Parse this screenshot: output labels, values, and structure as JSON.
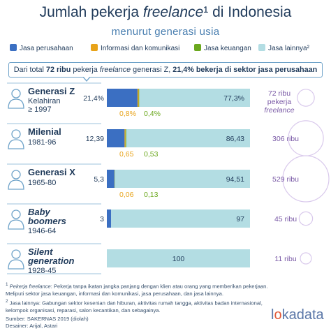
{
  "title": {
    "prefix": "Jumlah pekerja ",
    "italic": "freelance",
    "suffix": "¹ di Indonesia"
  },
  "subtitle": "menurut generasi usia",
  "legend": [
    {
      "label": "Jasa perusahaan",
      "color": "#3b6fc2"
    },
    {
      "label": "Informasi dan komunikasi",
      "color": "#e8a319"
    },
    {
      "label": "Jasa keuangan",
      "color": "#6ba81e"
    },
    {
      "label": "Jasa lainnya²",
      "color": "#b3dde3"
    }
  ],
  "note": {
    "p1": "Dari total ",
    "b1": "72 ribu",
    "p2": " pekerja ",
    "i1": "freelance",
    "p3": " generasi Z, ",
    "b2": "21,4% bekerja di sektor jasa perusahaan"
  },
  "chart_data": {
    "type": "bar",
    "orientation": "horizontal",
    "stacked": true,
    "unit": "%",
    "categories": [
      "Generasi Z",
      "Milenial",
      "Generasi X",
      "Baby boomers",
      "Silent generation"
    ],
    "category_subtitles": [
      "Kelahiran ≥ 1997",
      "1981-96",
      "1965-80",
      "1946-64",
      "1928-45"
    ],
    "series": [
      {
        "name": "Jasa perusahaan",
        "color": "#3b6fc2",
        "values": [
          21.4,
          12.39,
          5.3,
          3,
          0
        ],
        "labels": [
          "21,4%",
          "12,39",
          "5,3",
          "3",
          ""
        ]
      },
      {
        "name": "Informasi dan komunikasi",
        "color": "#e8a319",
        "values": [
          0.8,
          0.65,
          0.06,
          0,
          0
        ],
        "labels": [
          "0,8%",
          "0,65",
          "0,06",
          "",
          ""
        ]
      },
      {
        "name": "Jasa keuangan",
        "color": "#6ba81e",
        "values": [
          0.4,
          0.53,
          0.13,
          0,
          0
        ],
        "labels": [
          "0,4%",
          "0,53",
          "0,13",
          "",
          ""
        ]
      },
      {
        "name": "Jasa lainnya²",
        "color": "#b3dde3",
        "values": [
          77.3,
          86.43,
          94.51,
          97,
          100
        ],
        "labels": [
          "77,3%",
          "86,43",
          "94,51",
          "97",
          "100"
        ]
      }
    ],
    "totals": {
      "values_ribu": [
        72,
        306,
        529,
        45,
        11
      ],
      "labels": [
        "72 ribu pekerja freelance",
        "306 ribu",
        "529 ribu",
        "45 ribu",
        "11 ribu"
      ],
      "bubble_color": "#7a5aa6"
    }
  },
  "footnotes": {
    "f1_num": "1",
    "f1_italic": "Pekerja freelance",
    "f1_text": ": Pekerja tanpa ikatan jangka panjang dengan klien atau orang yang memberikan pekerjaan. Meliputi sektor jasa keuangan, informasi dan komunikasi, jasa perusahaan, dan jasa lainnya.",
    "f2_num": "2",
    "f2_text": "Jasa lainnya: Gabungan sektor kesenian dan hiburan, aktivitas rumah tangga, aktivitas badan internasional, kelompok organisasi, reparasi, salon kecantikan, dan sebagainya.",
    "source": "Sumber: SAKERNAS 2019 (diolah)",
    "designer": "Desainer: Arijal, Astari"
  },
  "logo": {
    "prefix": "l",
    "dot": "o",
    "suffix": "kadata"
  }
}
